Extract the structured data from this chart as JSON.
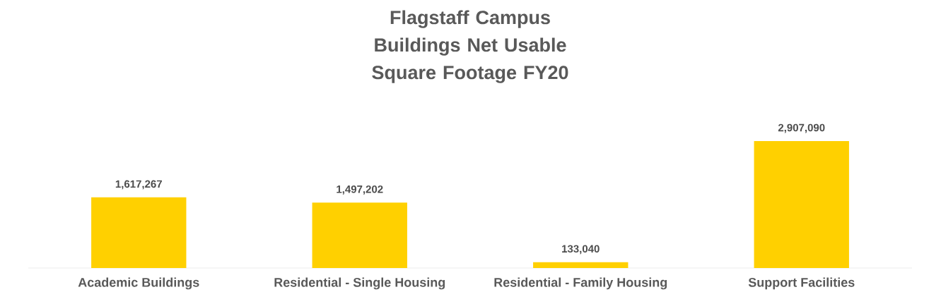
{
  "chart_data": {
    "type": "bar",
    "title": "Flagstaff Campus Buildings Net Usable Square Footage FY20",
    "categories": [
      "Academic Buildings",
      "Residential - Single Housing",
      "Residential - Family Housing",
      "Support Facilities"
    ],
    "values": [
      1617267,
      1497202,
      133040,
      2907090
    ],
    "color": "#ffd000",
    "value_labels": [
      "1,617,267",
      "1,497,202",
      "133,040",
      "2,907,090"
    ]
  }
}
